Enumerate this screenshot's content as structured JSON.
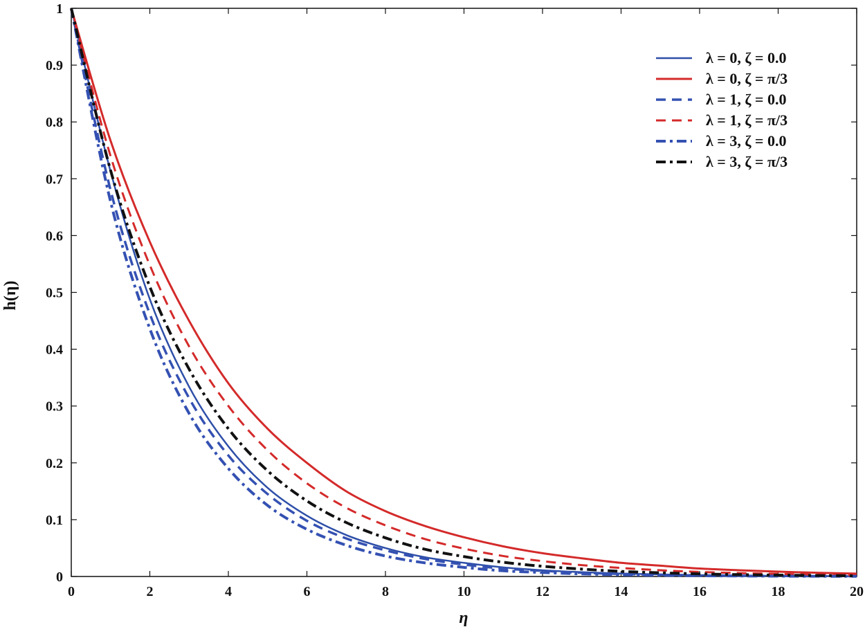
{
  "chart_data": {
    "type": "line",
    "xlabel": "η",
    "ylabel": "h(η)",
    "xlim": [
      0,
      20
    ],
    "ylim": [
      0,
      1
    ],
    "x_ticks": [
      "0",
      "2",
      "4",
      "6",
      "8",
      "10",
      "12",
      "14",
      "16",
      "18",
      "20"
    ],
    "y_ticks": [
      "0",
      "0.1",
      "0.2",
      "0.3",
      "0.4",
      "0.5",
      "0.6",
      "0.7",
      "0.8",
      "0.9",
      "1"
    ],
    "grid": false,
    "legend_position": "top-right",
    "x": [
      0,
      1,
      2,
      3,
      4,
      5,
      6,
      7,
      8,
      9,
      10,
      11,
      12,
      13,
      14,
      15,
      16,
      17,
      18,
      19,
      20
    ],
    "series": [
      {
        "name": "λ = 0, ζ = 0.0",
        "color": "#2e4fa8",
        "style": "solid",
        "width": 2.5,
        "values": [
          1.0,
          0.713,
          0.488,
          0.334,
          0.229,
          0.156,
          0.107,
          0.073,
          0.05,
          0.034,
          0.024,
          0.016,
          0.011,
          0.0076,
          0.0052,
          0.0036,
          0.0024,
          0.0017,
          0.0011,
          0.0008,
          0.0005
        ]
      },
      {
        "name": "λ = 0, ζ = π/3",
        "color": "#d42a2a",
        "style": "solid",
        "width": 3,
        "values": [
          1.0,
          0.767,
          0.589,
          0.45,
          0.34,
          0.26,
          0.2,
          0.15,
          0.115,
          0.089,
          0.069,
          0.053,
          0.041,
          0.032,
          0.024,
          0.019,
          0.014,
          0.011,
          0.0085,
          0.0065,
          0.005
        ]
      },
      {
        "name": "λ = 1, ζ = 0.0",
        "color": "#3451b2",
        "style": "dashed",
        "width": 3.5,
        "values": [
          1.0,
          0.68,
          0.462,
          0.314,
          0.213,
          0.145,
          0.098,
          0.067,
          0.046,
          0.031,
          0.021,
          0.014,
          0.01,
          0.0066,
          0.0045,
          0.003,
          0.002,
          0.0014,
          0.0009,
          0.0006,
          0.0004
        ]
      },
      {
        "name": "λ = 1, ζ = π/3",
        "color": "#d42a2a",
        "style": "dashed",
        "width": 3,
        "values": [
          1.0,
          0.74,
          0.548,
          0.405,
          0.3,
          0.222,
          0.164,
          0.121,
          0.09,
          0.066,
          0.049,
          0.036,
          0.027,
          0.02,
          0.015,
          0.011,
          0.008,
          0.006,
          0.0045,
          0.0033,
          0.0025
        ]
      },
      {
        "name": "λ = 3, ζ = 0.0",
        "color": "#3451b2",
        "style": "dashdot",
        "width": 4,
        "values": [
          1.0,
          0.66,
          0.436,
          0.287,
          0.19,
          0.125,
          0.083,
          0.055,
          0.036,
          0.024,
          0.016,
          0.01,
          0.007,
          0.0045,
          0.003,
          0.002,
          0.0013,
          0.0009,
          0.0006,
          0.0004,
          0.0003
        ]
      },
      {
        "name": "λ = 3, ζ = π/3",
        "color": "#111111",
        "style": "dashdot",
        "width": 4,
        "values": [
          1.0,
          0.715,
          0.51,
          0.365,
          0.26,
          0.186,
          0.133,
          0.095,
          0.068,
          0.048,
          0.035,
          0.025,
          0.018,
          0.013,
          0.009,
          0.0065,
          0.0046,
          0.0033,
          0.0024,
          0.0017,
          0.0012
        ]
      }
    ]
  }
}
